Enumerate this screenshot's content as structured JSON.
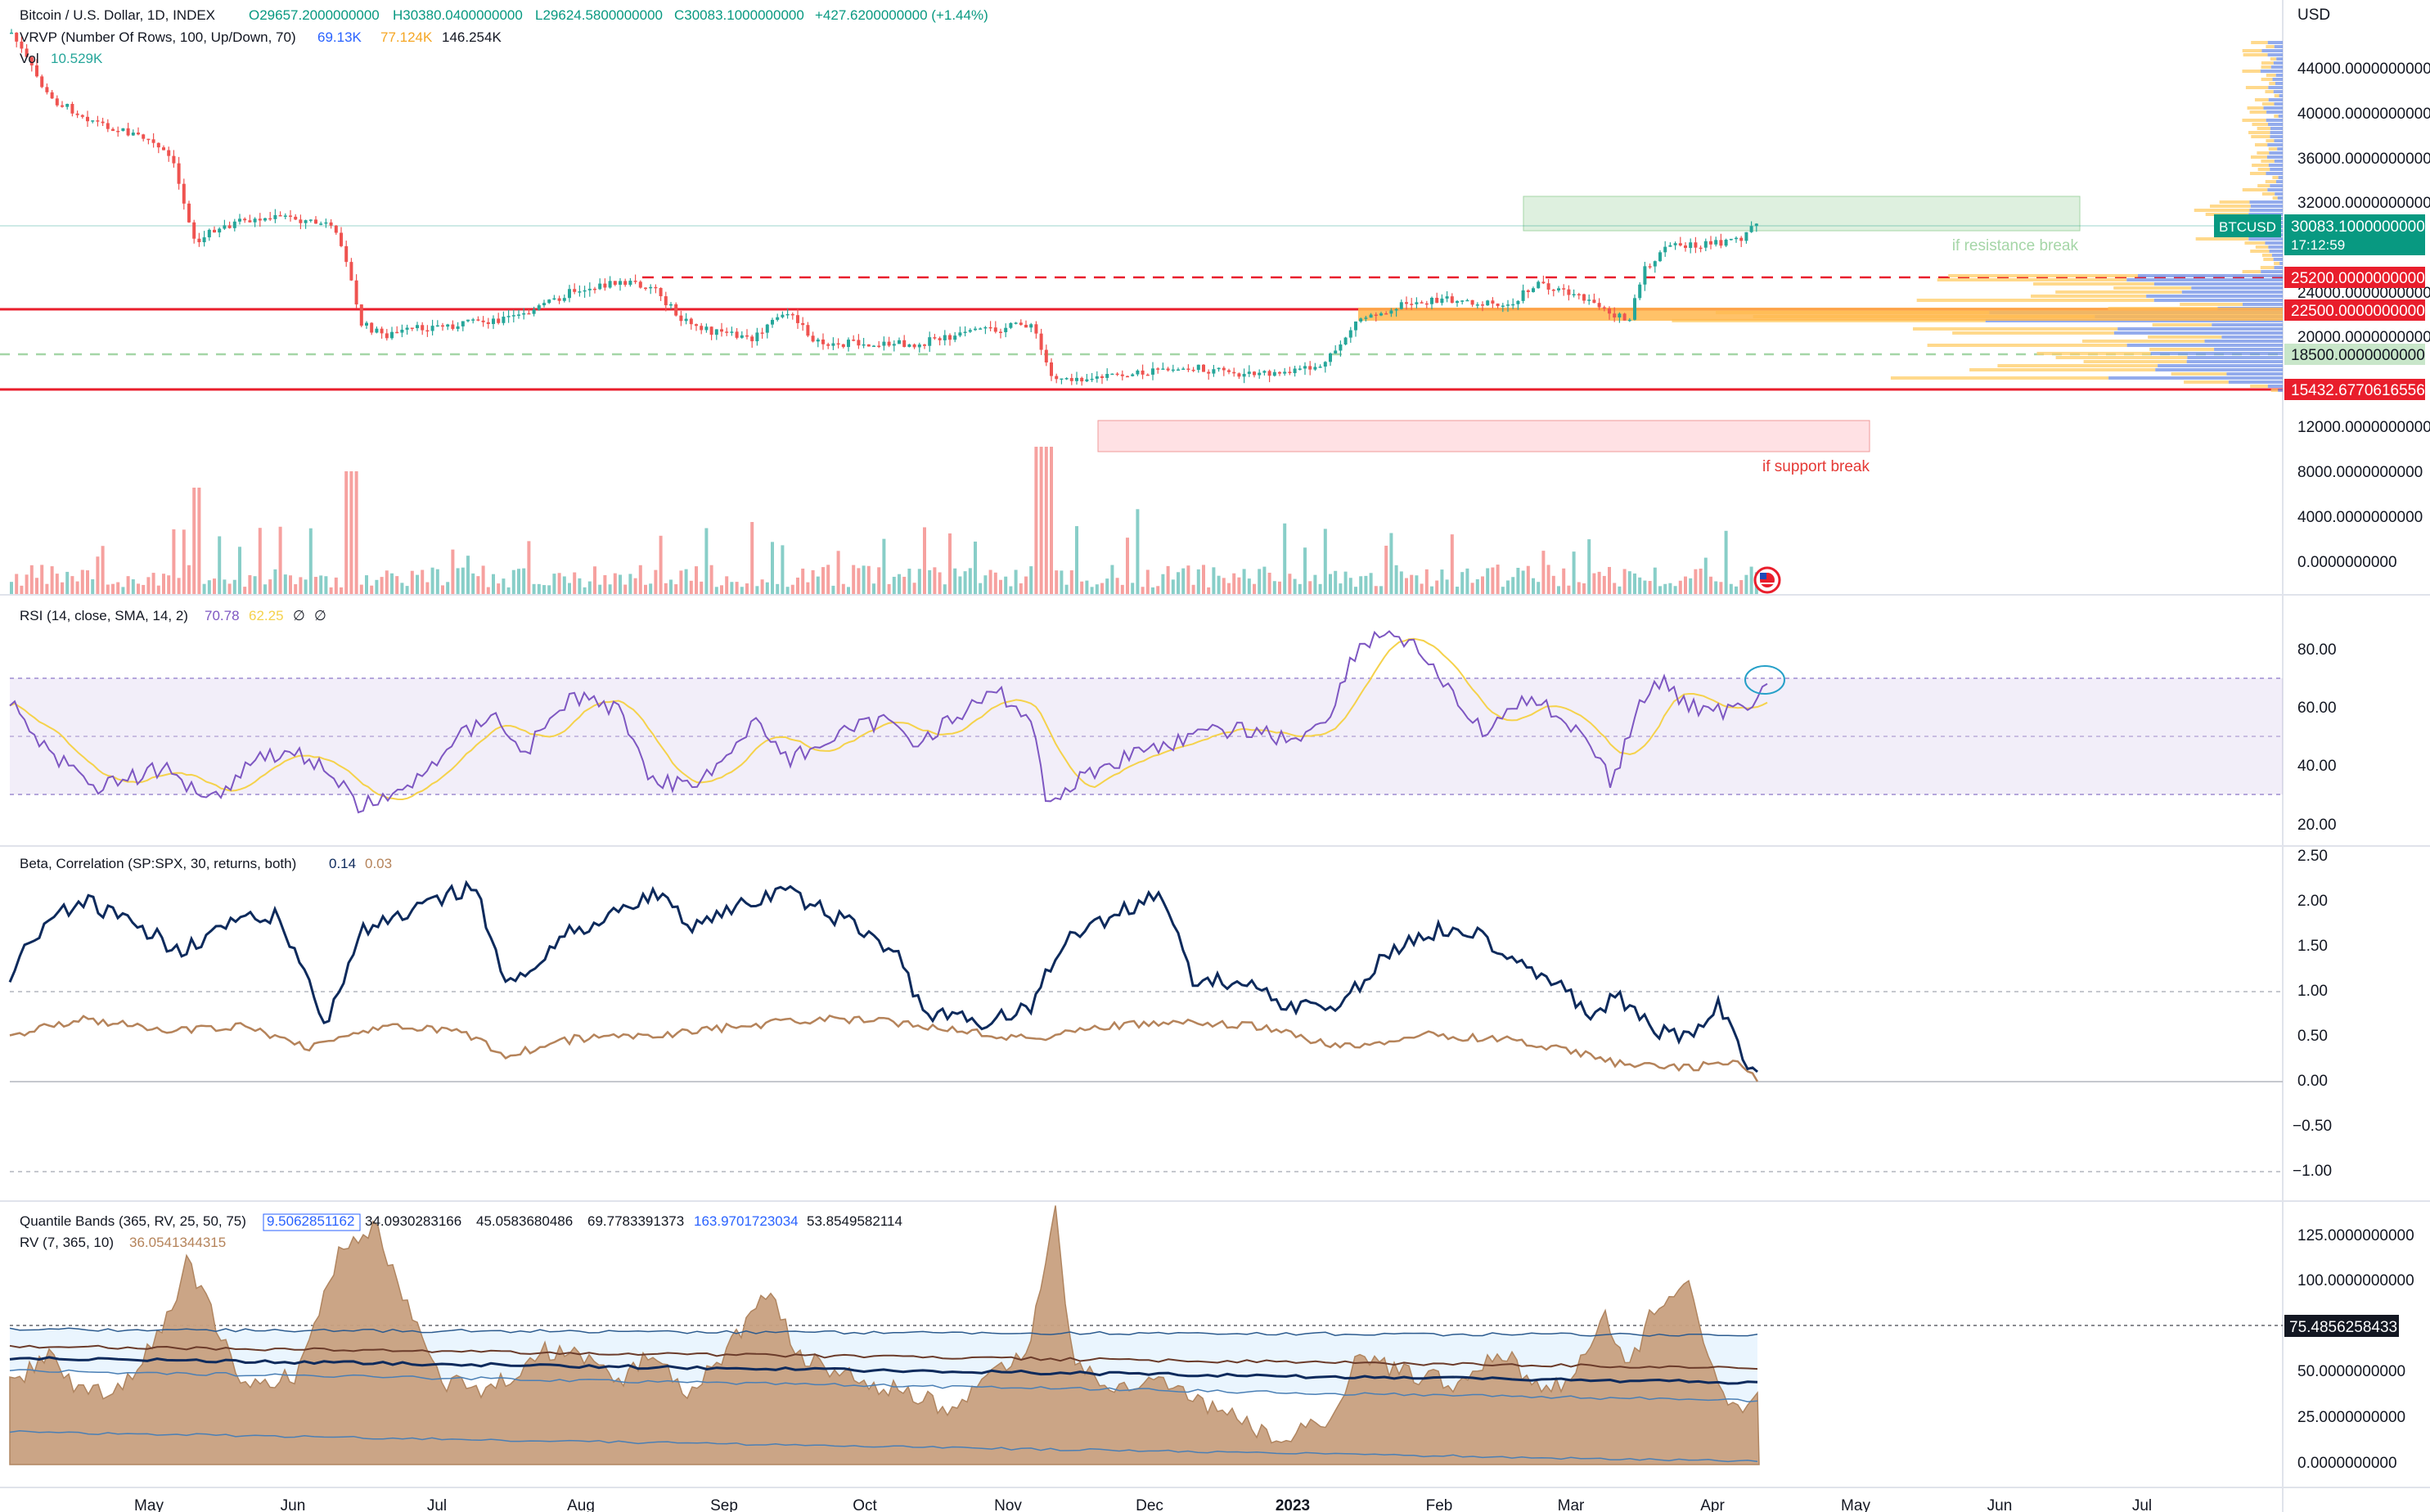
{
  "header": {
    "symbol": "Bitcoin / U.S. Dollar, 1D, INDEX",
    "open": "O29657.2000000000",
    "high": "H30380.0400000000",
    "low": "L29624.5800000000",
    "close": "C30083.1000000000",
    "change": "+427.6200000000 (+1.44%)"
  },
  "indicators": {
    "vrvp": {
      "label": "VRVP (Number Of Rows, 100, Up/Down, 70)",
      "v1": "69.13K",
      "v2": "77.124K",
      "v3": "146.254K"
    },
    "vol": {
      "label": "Vol",
      "value": "10.529K"
    },
    "rsi": {
      "label": "RSI (14, close, SMA, 14, 2)",
      "v1": "70.78",
      "v2": "62.25",
      "v3": "∅",
      "v4": "∅"
    },
    "beta": {
      "label": "Beta, Correlation (SP:SPX, 30, returns, both)",
      "v1": "0.14",
      "v2": "0.03"
    },
    "quantile": {
      "label": "Quantile Bands (365, RV, 25, 50, 75)",
      "v1": "9.5062851162",
      "v2": "34.0930283166",
      "v3": "45.0583680486",
      "v4": "69.7783391373",
      "v5": "163.9701723034",
      "v6": "53.8549582114"
    },
    "rv": {
      "label": "RV (7, 365, 10)",
      "value": "36.0541344315"
    }
  },
  "axis": {
    "currency": "USD",
    "price_ticks": [
      "44000.0000000000",
      "40000.0000000000",
      "36000.0000000000",
      "32000.0000000000",
      "24000.0000000000",
      "20000.0000000000",
      "12000.0000000000",
      "8000.0000000000",
      "4000.0000000000",
      "0.0000000000"
    ],
    "rsi_ticks": [
      "80.00",
      "60.00",
      "40.00",
      "20.00"
    ],
    "beta_ticks": [
      "2.50",
      "2.00",
      "1.50",
      "1.00",
      "0.50",
      "0.00",
      "−0.50",
      "−1.00"
    ],
    "rv_ticks": [
      "125.0000000000",
      "100.0000000000",
      "50.0000000000",
      "25.0000000000",
      "0.0000000000"
    ],
    "months": [
      "May",
      "Jun",
      "Jul",
      "Aug",
      "Sep",
      "Oct",
      "Nov",
      "Dec",
      "2023",
      "Feb",
      "Mar",
      "Apr",
      "May",
      "Jun",
      "Jul"
    ]
  },
  "price_labels": {
    "ticker": "BTCUSD",
    "current": "30083.1000000000",
    "countdown": "17:12:59",
    "l25200": "25200.0000000000",
    "l22500": "22500.0000000000",
    "l18500": "18500.0000000000",
    "l15432": "15432.6770616556",
    "rv_current": "75.4856258433"
  },
  "annotations": {
    "resistance": "if resistance break",
    "support": "if support break"
  },
  "colors": {
    "up": "#26a69a",
    "down": "#ef5350",
    "red_line": "#e91e2c",
    "rsi": "#7e57c2",
    "rsi_ma": "#f5d24b",
    "beta": "#0d2a5c",
    "corr": "#b5835a",
    "rv_fill": "#c8a07f",
    "current_price": "#089981"
  }
}
